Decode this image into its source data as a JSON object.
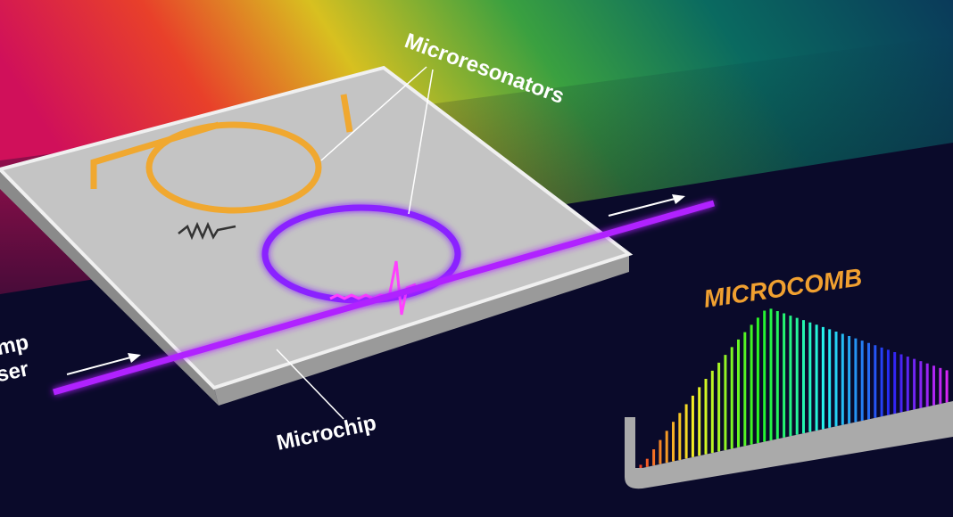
{
  "labels": {
    "microresonators": "Microresonators",
    "microchip": "Microchip",
    "microcomb": "MICROCOMB",
    "pump_line1": "mp",
    "pump_line2": "ser"
  }
}
